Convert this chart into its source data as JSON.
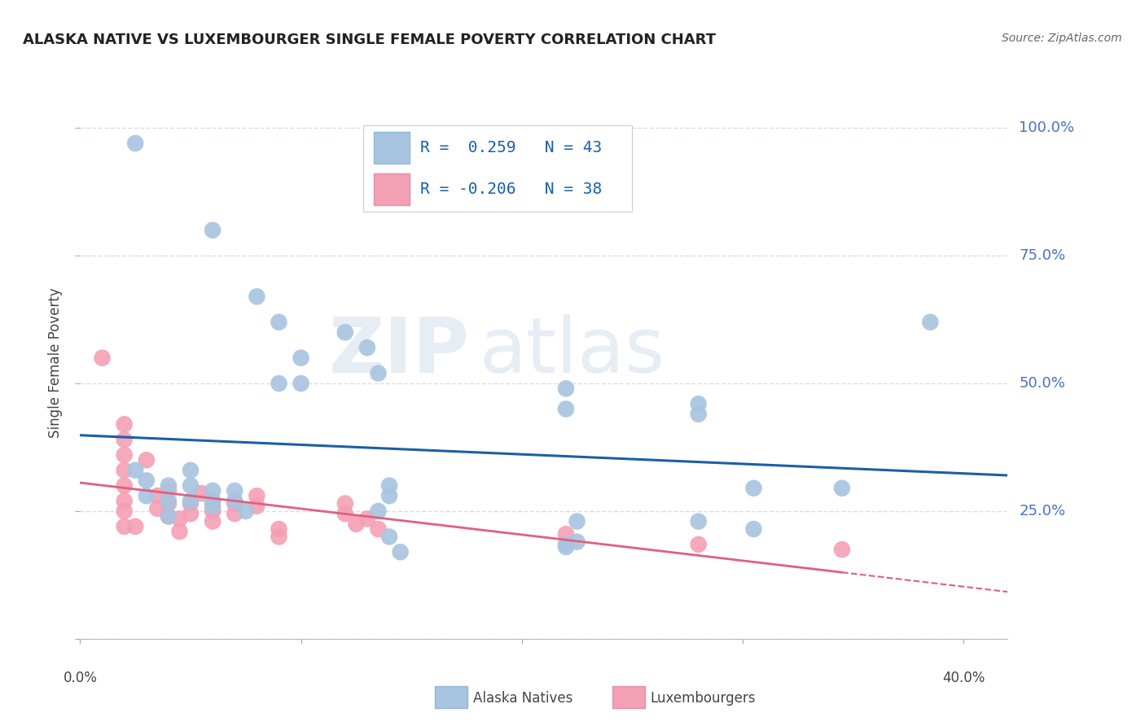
{
  "title": "ALASKA NATIVE VS LUXEMBOURGER SINGLE FEMALE POVERTY CORRELATION CHART",
  "source": "Source: ZipAtlas.com",
  "ylabel": "Single Female Poverty",
  "x_range": [
    0.0,
    0.42
  ],
  "y_range": [
    0.0,
    1.08
  ],
  "watermark_zip": "ZIP",
  "watermark_atlas": "atlas",
  "blue_color": "#a8c4e0",
  "pink_color": "#f4a0b4",
  "blue_line_color": "#1a5fa8",
  "pink_line_color": "#e06080",
  "grid_color": "#d8dfe8",
  "blue_scatter": [
    [
      0.025,
      0.97
    ],
    [
      0.06,
      0.8
    ],
    [
      0.08,
      0.67
    ],
    [
      0.09,
      0.62
    ],
    [
      0.09,
      0.5
    ],
    [
      0.1,
      0.55
    ],
    [
      0.1,
      0.5
    ],
    [
      0.12,
      0.6
    ],
    [
      0.13,
      0.57
    ],
    [
      0.135,
      0.52
    ],
    [
      0.14,
      0.3
    ],
    [
      0.14,
      0.28
    ],
    [
      0.135,
      0.25
    ],
    [
      0.14,
      0.2
    ],
    [
      0.145,
      0.17
    ],
    [
      0.025,
      0.33
    ],
    [
      0.03,
      0.31
    ],
    [
      0.03,
      0.28
    ],
    [
      0.04,
      0.3
    ],
    [
      0.04,
      0.27
    ],
    [
      0.04,
      0.24
    ],
    [
      0.05,
      0.33
    ],
    [
      0.05,
      0.3
    ],
    [
      0.05,
      0.27
    ],
    [
      0.06,
      0.29
    ],
    [
      0.06,
      0.26
    ],
    [
      0.06,
      0.27
    ],
    [
      0.07,
      0.29
    ],
    [
      0.07,
      0.27
    ],
    [
      0.075,
      0.25
    ],
    [
      0.22,
      0.49
    ],
    [
      0.22,
      0.45
    ],
    [
      0.225,
      0.23
    ],
    [
      0.225,
      0.19
    ],
    [
      0.22,
      0.185
    ],
    [
      0.22,
      0.18
    ],
    [
      0.28,
      0.46
    ],
    [
      0.28,
      0.44
    ],
    [
      0.28,
      0.23
    ],
    [
      0.305,
      0.295
    ],
    [
      0.305,
      0.215
    ],
    [
      0.345,
      0.295
    ],
    [
      0.385,
      0.62
    ]
  ],
  "pink_scatter": [
    [
      0.01,
      0.55
    ],
    [
      0.02,
      0.42
    ],
    [
      0.02,
      0.39
    ],
    [
      0.02,
      0.36
    ],
    [
      0.02,
      0.33
    ],
    [
      0.02,
      0.3
    ],
    [
      0.02,
      0.27
    ],
    [
      0.02,
      0.25
    ],
    [
      0.02,
      0.22
    ],
    [
      0.025,
      0.22
    ],
    [
      0.03,
      0.35
    ],
    [
      0.035,
      0.28
    ],
    [
      0.035,
      0.255
    ],
    [
      0.04,
      0.29
    ],
    [
      0.04,
      0.265
    ],
    [
      0.04,
      0.24
    ],
    [
      0.045,
      0.235
    ],
    [
      0.045,
      0.21
    ],
    [
      0.05,
      0.265
    ],
    [
      0.05,
      0.245
    ],
    [
      0.055,
      0.285
    ],
    [
      0.06,
      0.27
    ],
    [
      0.06,
      0.25
    ],
    [
      0.06,
      0.23
    ],
    [
      0.07,
      0.265
    ],
    [
      0.07,
      0.245
    ],
    [
      0.08,
      0.28
    ],
    [
      0.08,
      0.26
    ],
    [
      0.09,
      0.215
    ],
    [
      0.09,
      0.2
    ],
    [
      0.12,
      0.265
    ],
    [
      0.12,
      0.245
    ],
    [
      0.125,
      0.225
    ],
    [
      0.13,
      0.235
    ],
    [
      0.135,
      0.215
    ],
    [
      0.22,
      0.205
    ],
    [
      0.28,
      0.185
    ],
    [
      0.345,
      0.175
    ]
  ],
  "y_ticks": [
    0.0,
    0.25,
    0.5,
    0.75,
    1.0
  ],
  "y_tick_labels": [
    "",
    "25.0%",
    "50.0%",
    "75.0%",
    "100.0%"
  ],
  "x_tick_positions": [
    0.0,
    0.1,
    0.2,
    0.3,
    0.4
  ],
  "x_tick_labels": [
    "0.0%",
    "",
    "",
    "",
    "40.0%"
  ],
  "background_color": "#ffffff"
}
